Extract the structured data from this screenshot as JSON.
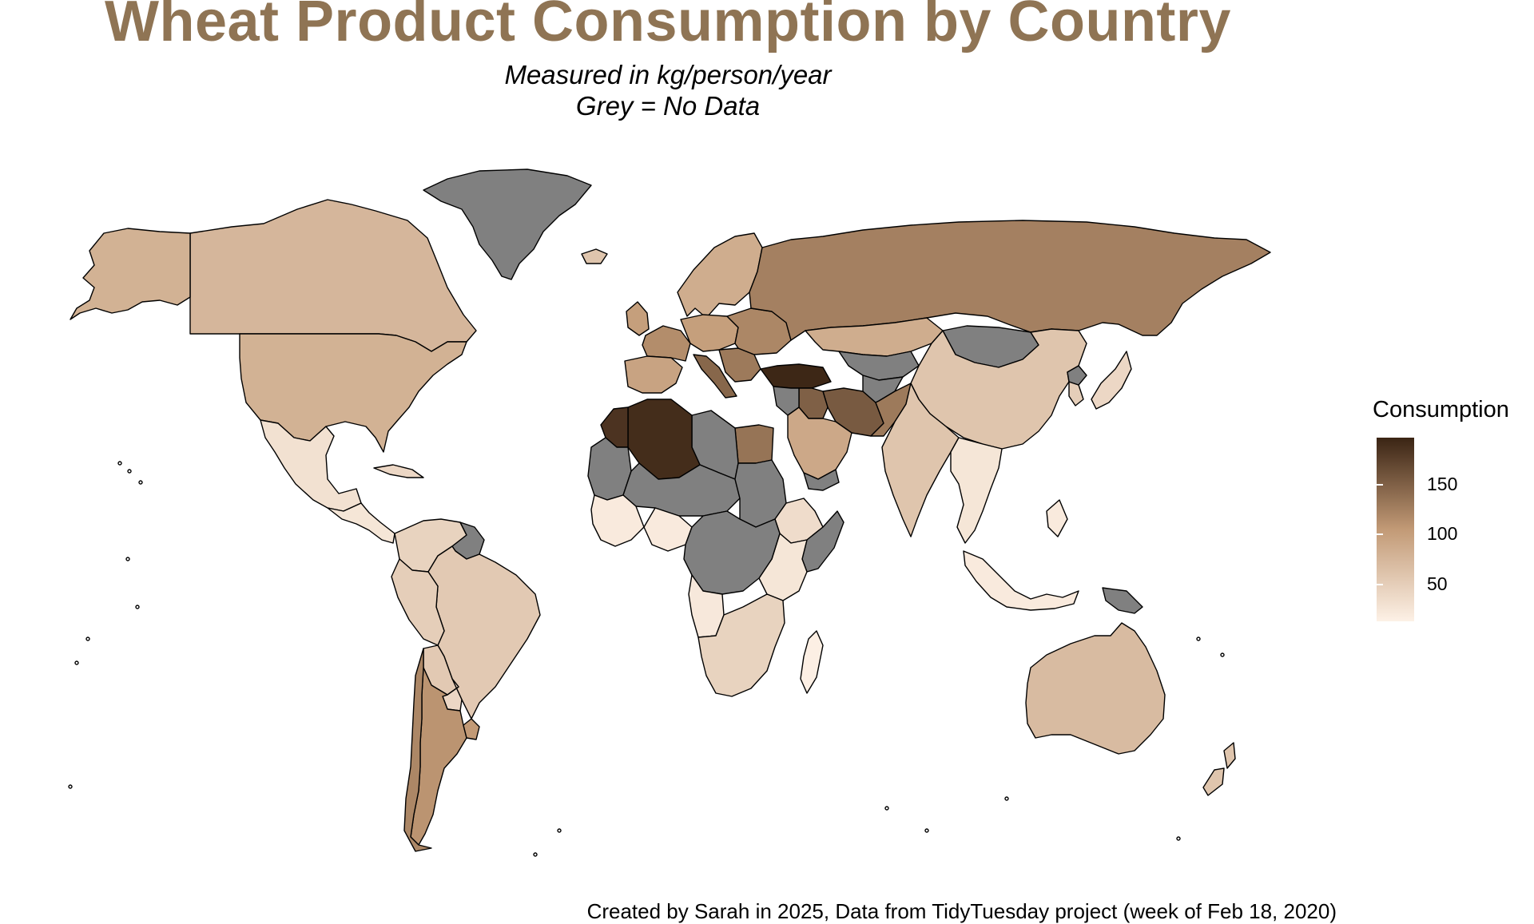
{
  "title": "Wheat Product Consumption by Country",
  "subtitle_line1": "Measured in kg/person/year",
  "subtitle_line2": "Grey = No Data",
  "caption": "Created by Sarah in 2025, Data from TidyTuesday project (week of Feb 18, 2020)",
  "legend": {
    "title": "Consumption",
    "ticks": [
      {
        "value": 150,
        "label": "150"
      },
      {
        "value": 100,
        "label": "100"
      },
      {
        "value": 50,
        "label": "50"
      }
    ],
    "range": [
      13,
      197
    ],
    "color_low": "#fdf1e6",
    "color_high": "#3a2414",
    "no_data_color": "#808080"
  },
  "map_data": {
    "type": "choropleth",
    "variable": "Wheat product consumption (kg/person/year)",
    "regions": [
      {
        "name": "Canada",
        "value": 75
      },
      {
        "name": "United States",
        "value": 80
      },
      {
        "name": "Alaska (USA)",
        "value": 80
      },
      {
        "name": "Mexico",
        "value": 30
      },
      {
        "name": "Central America",
        "value": 25
      },
      {
        "name": "Cuba",
        "value": 40
      },
      {
        "name": "Venezuela / Colombia",
        "value": 45
      },
      {
        "name": "Guyana / Suriname",
        "value": null
      },
      {
        "name": "Brazil",
        "value": 55
      },
      {
        "name": "Peru / Ecuador",
        "value": 50
      },
      {
        "name": "Bolivia",
        "value": 55
      },
      {
        "name": "Paraguay",
        "value": 40
      },
      {
        "name": "Argentina",
        "value": 110
      },
      {
        "name": "Chile",
        "value": 120
      },
      {
        "name": "Uruguay",
        "value": 105
      },
      {
        "name": "Greenland",
        "value": null
      },
      {
        "name": "Iceland",
        "value": 60
      },
      {
        "name": "Norway / Sweden / Finland",
        "value": 85
      },
      {
        "name": "United Kingdom",
        "value": 100
      },
      {
        "name": "France",
        "value": 115
      },
      {
        "name": "Spain / Portugal",
        "value": 95
      },
      {
        "name": "Germany / Central Europe",
        "value": 100
      },
      {
        "name": "Italy",
        "value": 145
      },
      {
        "name": "Balkans",
        "value": 130
      },
      {
        "name": "Eastern Europe",
        "value": 120
      },
      {
        "name": "Russia",
        "value": 125
      },
      {
        "name": "Turkey",
        "value": 195
      },
      {
        "name": "Kazakhstan",
        "value": 85
      },
      {
        "name": "Central Asia",
        "value": null
      },
      {
        "name": "Mongolia",
        "value": null
      },
      {
        "name": "China",
        "value": 60
      },
      {
        "name": "Japan",
        "value": 40
      },
      {
        "name": "Korea",
        "value": 50
      },
      {
        "name": "North Korea",
        "value": null
      },
      {
        "name": "Iran",
        "value": 155
      },
      {
        "name": "Iraq",
        "value": 150
      },
      {
        "name": "Syria",
        "value": null
      },
      {
        "name": "Afghanistan",
        "value": null
      },
      {
        "name": "Pakistan",
        "value": 130
      },
      {
        "name": "India",
        "value": 60
      },
      {
        "name": "Saudi Arabia",
        "value": 90
      },
      {
        "name": "Yemen",
        "value": null
      },
      {
        "name": "Egypt",
        "value": 135
      },
      {
        "name": "Libya",
        "value": null
      },
      {
        "name": "Algeria",
        "value": 190
      },
      {
        "name": "Morocco",
        "value": 185
      },
      {
        "name": "Western Sahara / Mauritania",
        "value": null
      },
      {
        "name": "Sahel (Mali / Niger / Chad)",
        "value": null
      },
      {
        "name": "Sudan",
        "value": null
      },
      {
        "name": "Nigeria",
        "value": 20
      },
      {
        "name": "West Africa coast",
        "value": 20
      },
      {
        "name": "Ethiopia",
        "value": 35
      },
      {
        "name": "Somalia",
        "value": null
      },
      {
        "name": "Kenya / Tanzania",
        "value": 25
      },
      {
        "name": "Central Africa",
        "value": null
      },
      {
        "name": "Angola",
        "value": 22
      },
      {
        "name": "Southern Africa",
        "value": 45
      },
      {
        "name": "Madagascar",
        "value": 15
      },
      {
        "name": "Southeast Asia mainland",
        "value": 25
      },
      {
        "name": "Indonesia / Philippines",
        "value": 20
      },
      {
        "name": "Papua New Guinea",
        "value": null
      },
      {
        "name": "Australia",
        "value": 70
      },
      {
        "name": "New Zealand",
        "value": 60
      }
    ]
  }
}
